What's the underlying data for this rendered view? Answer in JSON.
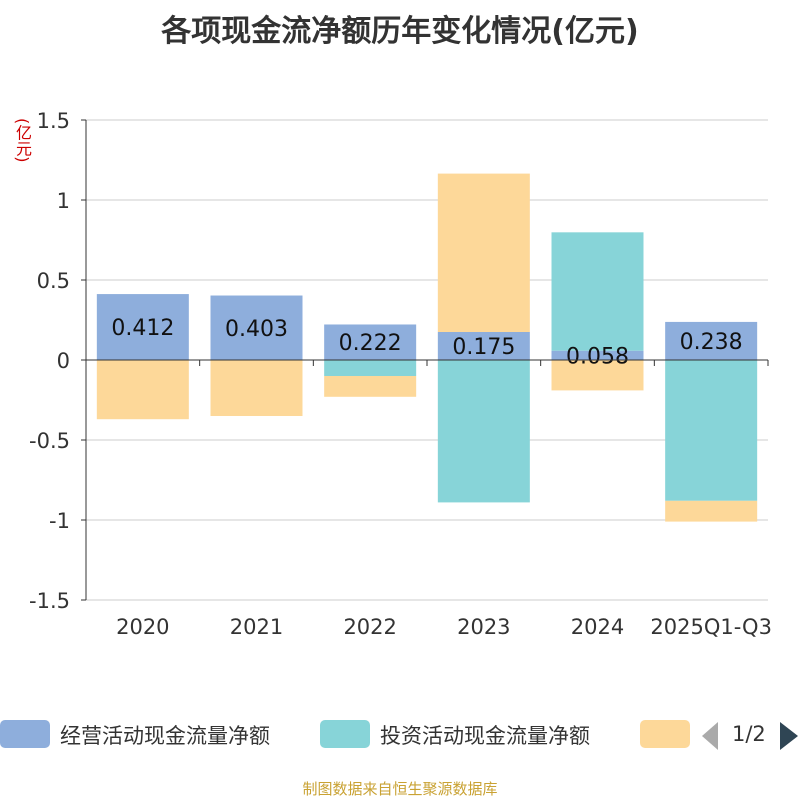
{
  "title": "各项现金流净额历年变化情况(亿元)",
  "unit_label": "(亿元)",
  "source": "制图数据来自恒生聚源数据库",
  "pager": {
    "text": "1/2"
  },
  "legend": [
    {
      "name": "经营活动现金流量净额",
      "color": "#8eaedc"
    },
    {
      "name": "投资活动现金流量净额",
      "color": "#87d4d8"
    },
    {
      "name": "",
      "color": "#fdd899"
    }
  ],
  "chart_data": {
    "type": "bar",
    "stacked": true,
    "categories": [
      "2020",
      "2021",
      "2022",
      "2023",
      "2024",
      "2025Q1-Q3"
    ],
    "ylim": [
      -1.5,
      1.5
    ],
    "yticks": [
      "1.5",
      "1",
      "0.5",
      "0",
      "-0.5",
      "-1",
      "-1.5"
    ],
    "grid": true,
    "legend_position": "bottom",
    "series": [
      {
        "name": "经营活动现金流量净额",
        "color": "#8eaedc",
        "values": [
          0.412,
          0.403,
          0.222,
          0.175,
          0.058,
          0.238
        ],
        "labels": [
          "0.412",
          "0.403",
          "0.222",
          "0.175",
          "0.058",
          "0.238"
        ]
      },
      {
        "name": "投资活动现金流量净额",
        "color": "#87d4d8",
        "values": [
          0.0,
          0.0,
          -0.1,
          -0.89,
          0.74,
          -0.88
        ]
      },
      {
        "name": "",
        "color": "#fdd899",
        "values": [
          -0.37,
          -0.35,
          -0.13,
          0.99,
          -0.19,
          -0.13
        ]
      }
    ]
  }
}
